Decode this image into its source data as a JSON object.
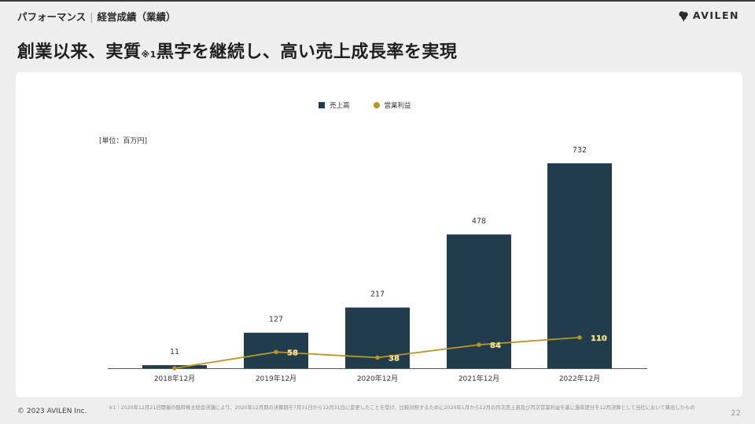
{
  "header": {
    "section": "パフォーマンス",
    "subsection": "経営成績（業績）",
    "logo_text": "AVILEN"
  },
  "title": {
    "main_before": "創業以来、実質",
    "note_mark": "※1",
    "main_after": "黒字を継続し、高い売上成長率を実現"
  },
  "chart_data": {
    "type": "bar",
    "categories": [
      "2018年12月",
      "2019年12月",
      "2020年12月",
      "2021年12月",
      "2022年12月"
    ],
    "series": [
      {
        "name": "売上高",
        "kind": "bar",
        "color": "#213d4c",
        "values": [
          11,
          127,
          217,
          478,
          732
        ]
      },
      {
        "name": "営業利益",
        "kind": "line",
        "color": "#b5952a",
        "values": [
          0,
          58,
          38,
          84,
          110
        ]
      }
    ],
    "unit_label": "[単位：百万円]",
    "ylim": [
      0,
      760
    ],
    "legend_position": "top-center",
    "grid": false
  },
  "footer": {
    "copyright": "© 2023 AVILEN Inc.",
    "footnote": "※1｜2020年12月21日開催の臨時株主総会決議により、2020年12月期の決算期を7月31日から12月31日に変更したことを受け、比較対照するために2020年1月から12月の月次売上高及び月次営業利益を基に過年度分を12月決算として当社において算出したもの",
    "page_number": "22"
  }
}
